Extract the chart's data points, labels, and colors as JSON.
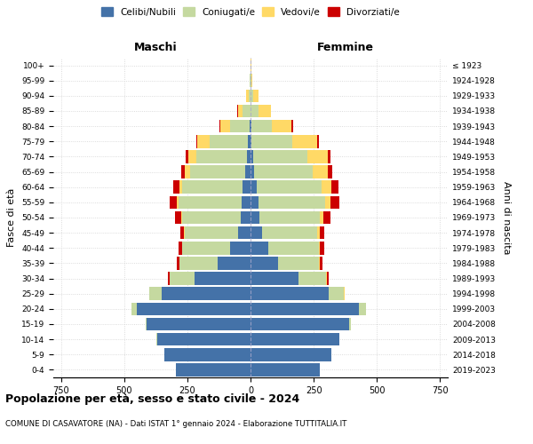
{
  "age_groups": [
    "0-4",
    "5-9",
    "10-14",
    "15-19",
    "20-24",
    "25-29",
    "30-34",
    "35-39",
    "40-44",
    "45-49",
    "50-54",
    "55-59",
    "60-64",
    "65-69",
    "70-74",
    "75-79",
    "80-84",
    "85-89",
    "90-94",
    "95-99",
    "100+"
  ],
  "birth_years": [
    "2019-2023",
    "2014-2018",
    "2009-2013",
    "2004-2008",
    "1999-2003",
    "1994-1998",
    "1989-1993",
    "1984-1988",
    "1979-1983",
    "1974-1978",
    "1969-1973",
    "1964-1968",
    "1959-1963",
    "1954-1958",
    "1949-1953",
    "1944-1948",
    "1939-1943",
    "1934-1938",
    "1929-1933",
    "1924-1928",
    "≤ 1923"
  ],
  "colors": {
    "celibe": "#4472a8",
    "coniugato": "#c5d9a0",
    "vedovo": "#ffd966",
    "divorziato": "#cc0000"
  },
  "males": {
    "celibe": [
      295,
      340,
      370,
      410,
      450,
      350,
      220,
      130,
      80,
      50,
      40,
      35,
      30,
      20,
      15,
      10,
      5,
      0,
      0,
      0,
      0
    ],
    "coniugato": [
      0,
      1,
      2,
      5,
      20,
      50,
      100,
      150,
      190,
      210,
      230,
      250,
      240,
      220,
      200,
      150,
      75,
      30,
      8,
      2,
      0
    ],
    "vedovo": [
      0,
      0,
      0,
      0,
      0,
      0,
      1,
      2,
      2,
      3,
      5,
      5,
      10,
      20,
      30,
      50,
      40,
      20,
      8,
      2,
      0
    ],
    "divorziato": [
      0,
      0,
      0,
      0,
      1,
      2,
      5,
      10,
      12,
      15,
      25,
      30,
      25,
      15,
      10,
      5,
      3,
      2,
      0,
      0,
      0
    ]
  },
  "females": {
    "nubile": [
      275,
      320,
      350,
      390,
      430,
      310,
      190,
      110,
      70,
      45,
      35,
      30,
      25,
      15,
      10,
      5,
      3,
      0,
      0,
      0,
      0
    ],
    "coniugata": [
      0,
      1,
      3,
      8,
      25,
      60,
      110,
      160,
      200,
      220,
      240,
      265,
      255,
      230,
      215,
      160,
      80,
      30,
      10,
      2,
      0
    ],
    "vedova": [
      0,
      0,
      0,
      0,
      0,
      1,
      2,
      3,
      5,
      8,
      12,
      20,
      40,
      60,
      80,
      100,
      80,
      50,
      20,
      5,
      2
    ],
    "divorziata": [
      0,
      0,
      0,
      0,
      1,
      3,
      6,
      12,
      15,
      20,
      28,
      35,
      28,
      18,
      12,
      6,
      4,
      2,
      0,
      0,
      0
    ]
  },
  "xlim": 780,
  "title": "Popolazione per età, sesso e stato civile - 2024",
  "subtitle": "COMUNE DI CASAVATORE (NA) - Dati ISTAT 1° gennaio 2024 - Elaborazione TUTTITALIA.IT",
  "ylabel_left": "Fasce di età",
  "ylabel_right": "Anni di nascita",
  "xlabel_maschi": "Maschi",
  "xlabel_femmine": "Femmine",
  "legend_labels": [
    "Celibi/Nubili",
    "Coniugati/e",
    "Vedovi/e",
    "Divorziati/e"
  ],
  "background_color": "#ffffff",
  "grid_color": "#cccccc"
}
